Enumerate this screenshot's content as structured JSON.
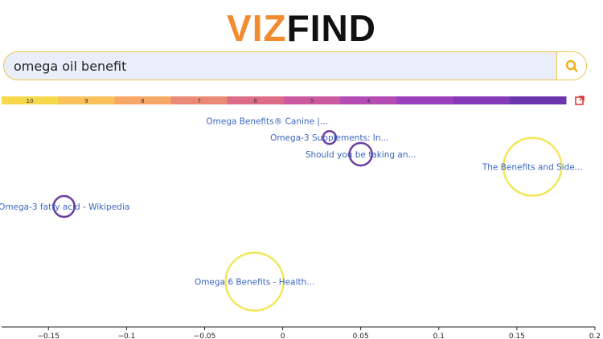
{
  "header": {
    "logo_left": "VIZ",
    "logo_right": "FIND"
  },
  "search": {
    "query": "omega oil benefit"
  },
  "color_scale": {
    "labels": [
      "10",
      "9",
      "8",
      "7",
      "6",
      "5",
      "4",
      null,
      null,
      null
    ],
    "colors": [
      "#f7d84a",
      "#f9c25a",
      "#f6a766",
      "#ea8a76",
      "#dc6c88",
      "#cc59a0",
      "#b44cb4",
      "#9a3fbe",
      "#8538b8",
      "#6a36b0"
    ]
  },
  "chart_data": {
    "type": "scatter",
    "labels": [
      "Omega Benefits® Canine |...",
      "Omega-3 Supplements: In...",
      "Should you be taking an...",
      "The Benefits and Side...",
      "Omega-3 fatty acid - Wikipedia",
      "Omega 6 Benefits - Health..."
    ],
    "x": [
      -0.01,
      0.03,
      0.05,
      0.16,
      -0.14,
      -0.018
    ],
    "y": [
      0.96,
      0.88,
      0.8,
      0.74,
      0.55,
      0.19
    ],
    "sizes": [
      null,
      8,
      14,
      36,
      13,
      36
    ],
    "colors": [
      "#6b3fa0",
      "#6b3fa0",
      "#6b3fa0",
      "#f2e65a",
      "#6b3fa0",
      "#f2e65a"
    ],
    "xlim": [
      -0.18,
      0.2
    ],
    "ylim": [
      0,
      1
    ],
    "xticks": [
      {
        "value": -0.15,
        "label": "−0.15"
      },
      {
        "value": -0.1,
        "label": "−0.1"
      },
      {
        "value": -0.05,
        "label": "−0.05"
      },
      0,
      0.05,
      0.1,
      0.15,
      0.2
    ]
  }
}
